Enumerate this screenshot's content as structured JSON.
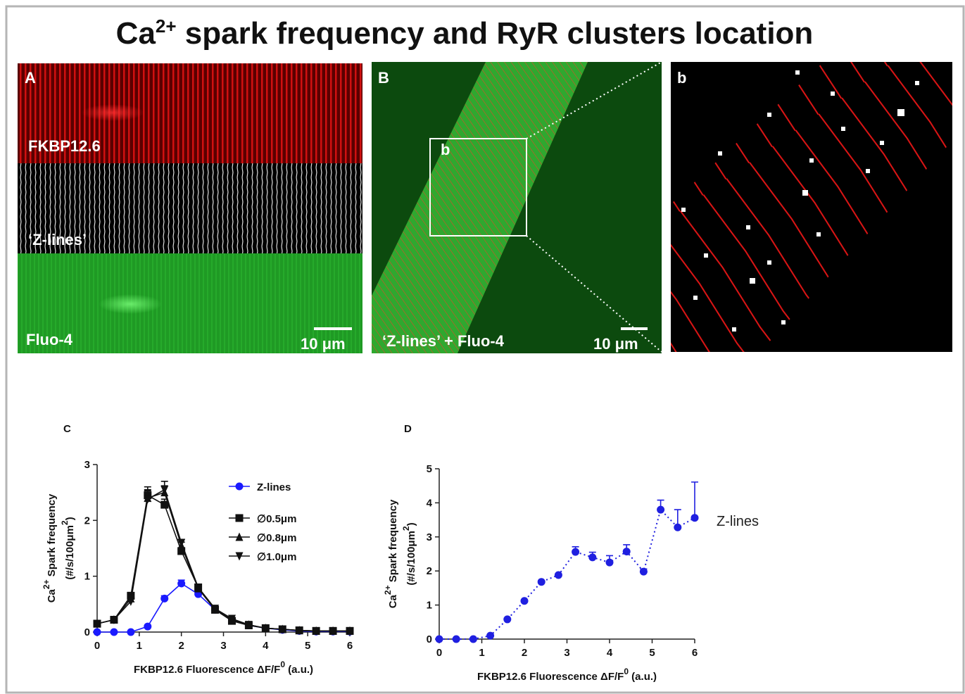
{
  "title": [
    "Ca",
    "2+",
    " spark frequency and RyR clusters location"
  ],
  "panels": {
    "A": {
      "label": "A",
      "strips": [
        "FKBP12.6",
        "‘Z-lines’",
        "Fluo-4"
      ],
      "scale": "10 μm"
    },
    "B": {
      "label": "B",
      "inset": "b",
      "caption": "‘Z-lines’ + Fluo-4",
      "scale": "10 μm"
    },
    "b": {
      "label": "b"
    }
  },
  "chart_data": [
    {
      "type": "line",
      "panel_label": "C",
      "ylabel": [
        "Ca",
        "2+",
        " Spark frequency"
      ],
      "ylabel2": [
        "(#/s/100μm",
        "2",
        ")"
      ],
      "xlabel": [
        "FKBP12.6 Fluorescence ΔF/F",
        "0",
        "  (a.u.)"
      ],
      "x": [
        0,
        0.4,
        0.8,
        1.2,
        1.6,
        2.0,
        2.4,
        2.8,
        3.2,
        3.6,
        4.0,
        4.4,
        4.8,
        5.2,
        5.6,
        6.0
      ],
      "xlim": [
        0,
        6
      ],
      "xticks": [
        0,
        1,
        2,
        3,
        4,
        5,
        6
      ],
      "ylim": [
        0,
        3
      ],
      "yticks": [
        0,
        1,
        2,
        3
      ],
      "legend": "upper right",
      "series": [
        {
          "name": "Z-lines",
          "color": "#1a1aff",
          "marker": "circle",
          "values": [
            0,
            0,
            0,
            0.1,
            0.6,
            0.87,
            0.68,
            0.4,
            0.22,
            0.12,
            0.07,
            0.04,
            0.02,
            0.01,
            0.01,
            0.01
          ],
          "errors": [
            0,
            0,
            0,
            0.02,
            0.05,
            0.06,
            0.04,
            0.03,
            0.02,
            0.02,
            0.01,
            0.01,
            0.01,
            0.01,
            0.01,
            0.01
          ]
        },
        {
          "name": "∅0.5μm",
          "color": "#111111",
          "marker": "square",
          "values": [
            0.15,
            0.22,
            0.65,
            2.45,
            2.28,
            1.45,
            0.8,
            0.4,
            0.2,
            0.12,
            0.07,
            0.05,
            0.03,
            0.02,
            0.02,
            0.02
          ],
          "errors": [
            0.02,
            0.03,
            0.06,
            0.15,
            0.1,
            0.06,
            0.05,
            0.03,
            0.02,
            0.02,
            0.01,
            0.01,
            0.01,
            0.01,
            0.01,
            0.01
          ]
        },
        {
          "name": "∅0.8μm",
          "color": "#111111",
          "marker": "triangle",
          "values": [
            0.15,
            0.22,
            0.6,
            2.4,
            2.5,
            1.55,
            0.78,
            0.4,
            0.22,
            0.13,
            0.07,
            0.05,
            0.03,
            0.02,
            0.02,
            0.02
          ],
          "errors": [
            0.02,
            0.03,
            0.06,
            0.15,
            0.12,
            0.06,
            0.05,
            0.03,
            0.02,
            0.02,
            0.01,
            0.01,
            0.01,
            0.01,
            0.01,
            0.01
          ]
        },
        {
          "name": "∅1.0μm",
          "color": "#111111",
          "marker": "triangle-down",
          "values": [
            0.15,
            0.22,
            0.55,
            2.38,
            2.55,
            1.6,
            0.8,
            0.42,
            0.24,
            0.13,
            0.07,
            0.05,
            0.03,
            0.02,
            0.02,
            0.02
          ],
          "errors": [
            0.02,
            0.03,
            0.06,
            0.15,
            0.15,
            0.06,
            0.05,
            0.03,
            0.02,
            0.02,
            0.01,
            0.01,
            0.01,
            0.01,
            0.01,
            0.01
          ]
        }
      ]
    },
    {
      "type": "line",
      "panel_label": "D",
      "ylabel": [
        "Ca",
        "2+",
        " Spark frequency"
      ],
      "ylabel2": [
        "(#/s/100μm",
        "2",
        ")"
      ],
      "xlabel": [
        "FKBP12.6 Fluorescence ΔF/F",
        "0",
        "  (a.u.)"
      ],
      "x": [
        0,
        0.4,
        0.8,
        1.2,
        1.6,
        2.0,
        2.4,
        2.8,
        3.2,
        3.6,
        4.0,
        4.4,
        4.8,
        5.2,
        5.6,
        6.0
      ],
      "xlim": [
        0,
        6
      ],
      "xticks": [
        0,
        1,
        2,
        3,
        4,
        5,
        6
      ],
      "ylim": [
        0,
        5
      ],
      "yticks": [
        0,
        1,
        2,
        3,
        4,
        5
      ],
      "annotation": "Z-lines",
      "series": [
        {
          "name": "Z-lines",
          "color": "#1f1fe0",
          "marker": "circle",
          "line_style": "dotted",
          "values": [
            0,
            0,
            0,
            0.1,
            0.58,
            1.12,
            1.68,
            1.88,
            2.56,
            2.4,
            2.25,
            2.57,
            1.98,
            3.8,
            3.28,
            3.56
          ],
          "errors": [
            0,
            0,
            0,
            0,
            0.03,
            0.03,
            0.03,
            0.03,
            0.15,
            0.15,
            0.2,
            0.2,
            0.08,
            0.28,
            0.52,
            1.05
          ]
        }
      ]
    }
  ]
}
